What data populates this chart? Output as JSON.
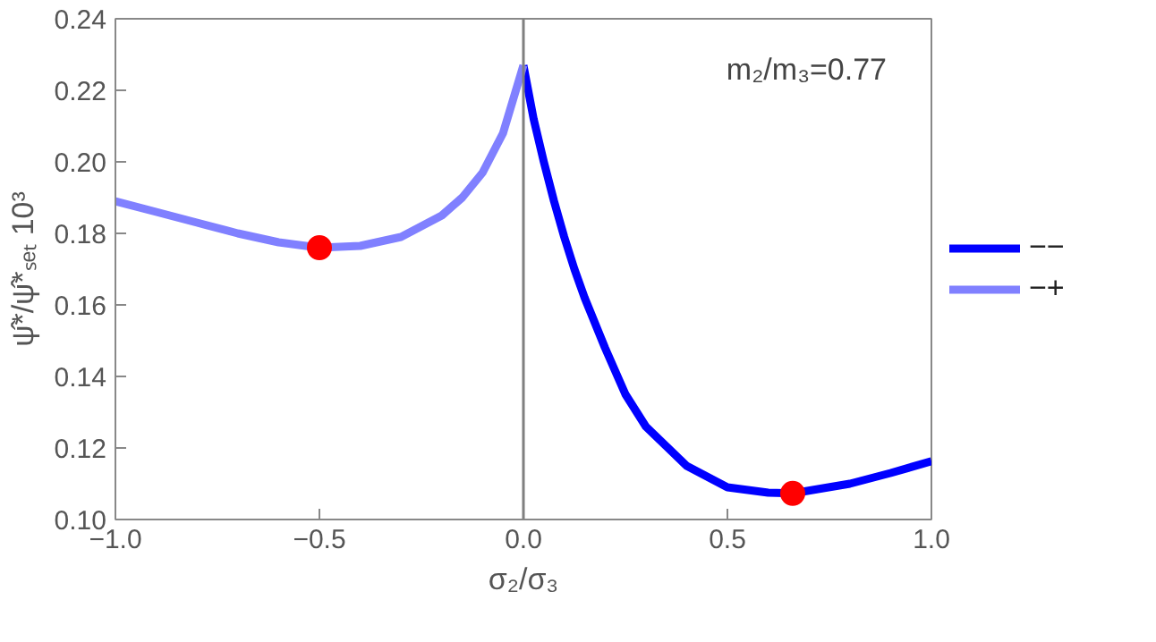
{
  "chart_data": {
    "type": "line",
    "xlabel": "σ₂/σ₃",
    "ylabel": "ψ̂*/ψ̂*ₛₑₜ 10³",
    "annotations": [
      "m₂/m₃=0.77"
    ],
    "xlim": [
      -1,
      1
    ],
    "ylim": [
      0.1,
      0.24
    ],
    "xticks": [
      {
        "value": -1,
        "label": "−1.0"
      },
      {
        "value": -0.5,
        "label": "−0.5"
      },
      {
        "value": 0,
        "label": "0.0"
      },
      {
        "value": 0.5,
        "label": "0.5"
      },
      {
        "value": 1,
        "label": "1.0"
      }
    ],
    "yticks": [
      {
        "value": 0.1,
        "label": "0.10"
      },
      {
        "value": 0.12,
        "label": "0.12"
      },
      {
        "value": 0.14,
        "label": "0.14"
      },
      {
        "value": 0.16,
        "label": "0.16"
      },
      {
        "value": 0.18,
        "label": "0.18"
      },
      {
        "value": 0.2,
        "label": "0.20"
      },
      {
        "value": 0.22,
        "label": "0.22"
      },
      {
        "value": 0.24,
        "label": "0.24"
      }
    ],
    "grid": false,
    "legend": "right",
    "line_style": "solid",
    "ref_lines": [
      {
        "axis": "x",
        "value": 0,
        "color": "#808080"
      }
    ],
    "series": [
      {
        "name": "−−",
        "color": "#0000ff",
        "x": [
          0,
          0.025,
          0.05,
          0.075,
          0.1,
          0.125,
          0.15,
          0.2,
          0.25,
          0.3,
          0.4,
          0.5,
          0.6,
          0.66,
          0.8,
          0.9,
          1.0
        ],
        "values": [
          0.227,
          0.212,
          0.2,
          0.189,
          0.179,
          0.17,
          0.162,
          0.148,
          0.135,
          0.126,
          0.115,
          0.109,
          0.1075,
          0.1073,
          0.11,
          0.113,
          0.1163
        ]
      },
      {
        "name": "−+",
        "color": "#8080ff",
        "x": [
          -1,
          -0.9,
          -0.8,
          -0.7,
          -0.6,
          -0.5,
          -0.4,
          -0.3,
          -0.2,
          -0.15,
          -0.1,
          -0.05,
          0
        ],
        "values": [
          0.189,
          0.186,
          0.183,
          0.18,
          0.1775,
          0.176,
          0.1765,
          0.179,
          0.185,
          0.19,
          0.197,
          0.208,
          0.227
        ]
      },
      {
        "type": "scatter",
        "marker": "circle",
        "color": "#ff0000",
        "x": [
          -0.5,
          0.66
        ],
        "values": [
          0.176,
          0.1073
        ]
      }
    ]
  }
}
